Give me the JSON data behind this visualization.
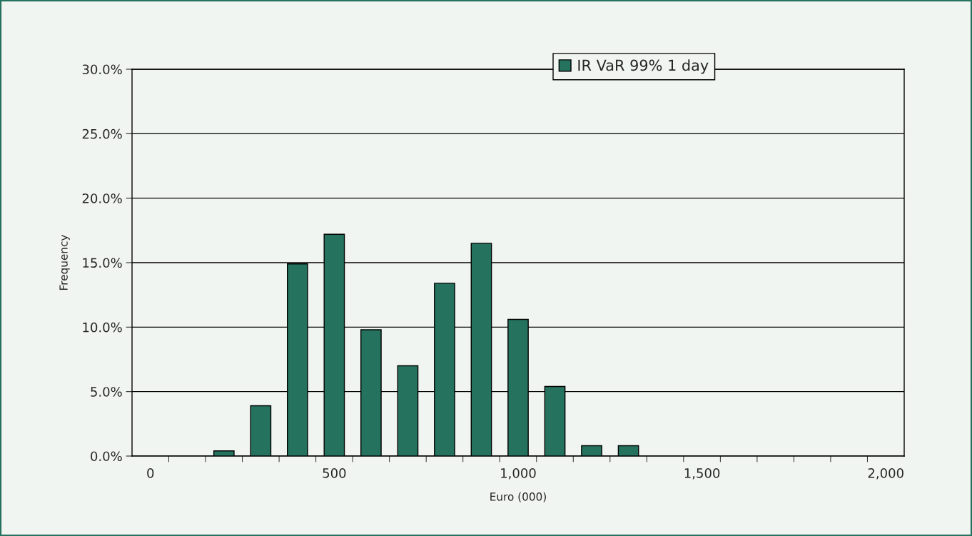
{
  "chart_data": {
    "type": "bar",
    "xlabel": "Euro (000)",
    "ylabel": "Frequency",
    "categories": [
      "0",
      null,
      null,
      null,
      null,
      "500",
      null,
      null,
      null,
      null,
      "1,000",
      null,
      null,
      null,
      null,
      "1,500",
      null,
      null,
      null,
      null,
      "2,000"
    ],
    "series": [
      {
        "name": "IR VaR 99% 1 day",
        "color": "#25735e",
        "values": [
          0,
          0,
          0.4,
          3.9,
          14.9,
          17.2,
          9.8,
          7.0,
          13.4,
          16.5,
          10.6,
          5.4,
          0.8,
          0.8,
          0,
          0,
          0,
          0,
          0,
          0,
          0
        ]
      }
    ],
    "ylim": [
      0,
      30
    ],
    "yticks": [
      {
        "value": 0,
        "label": "0.0%"
      },
      {
        "value": 5,
        "label": "5.0%"
      },
      {
        "value": 10,
        "label": "10.0%"
      },
      {
        "value": 15,
        "label": "15.0%"
      },
      {
        "value": 20,
        "label": "20.0%"
      },
      {
        "value": 25,
        "label": "25.0%"
      },
      {
        "value": 30,
        "label": "30.0%"
      }
    ],
    "grid": "y",
    "legend": "top"
  }
}
